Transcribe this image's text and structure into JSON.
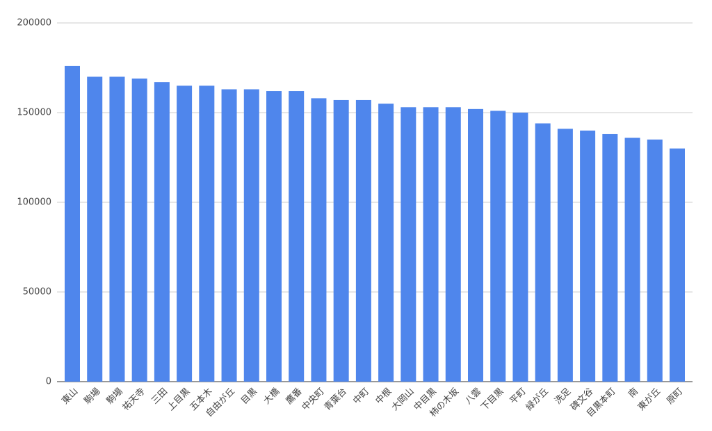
{
  "chart_data": {
    "type": "bar",
    "categories": [
      "東山",
      "駒場",
      "駒場",
      "祐天寺",
      "三田",
      "上目黒",
      "五本木",
      "自由が丘",
      "目黒",
      "大橋",
      "鷹番",
      "中央町",
      "青葉台",
      "中町",
      "中根",
      "大岡山",
      "中目黒",
      "柿の木坂",
      "八雲",
      "下目黒",
      "平町",
      "緑が丘",
      "洗足",
      "碑文谷",
      "目黒本町",
      "南",
      "東が丘",
      "原町"
    ],
    "values": [
      176000,
      170000,
      170000,
      169000,
      167000,
      165000,
      165000,
      163000,
      163000,
      162000,
      162000,
      158000,
      157000,
      157000,
      155000,
      153000,
      153000,
      153000,
      152000,
      151000,
      150000,
      144000,
      141000,
      140000,
      138000,
      136000,
      135000,
      130000
    ],
    "color": "#4f86ec",
    "ylim": [
      0,
      200000
    ],
    "yticks": [
      0,
      50000,
      100000,
      150000,
      200000
    ],
    "grid": true
  }
}
